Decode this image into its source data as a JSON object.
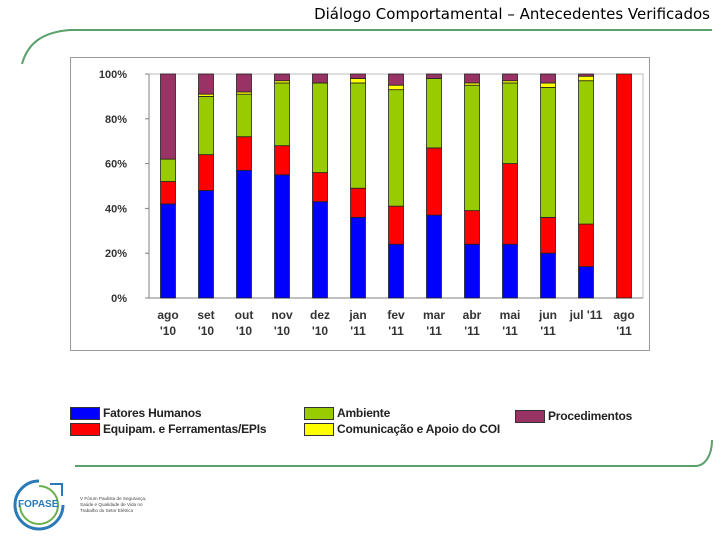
{
  "slide": {
    "title": "Diálogo Comportamental – Antecedentes Verificados",
    "logo_text": "FOPASE",
    "tagline_lines": [
      "V Fórum Paulista de Segurança,",
      "Saúde e Qualidade de Vida no",
      "Trabalho do Setor Elétrico"
    ]
  },
  "colors": {
    "fatores": "#0000ff",
    "equipam": "#ff0000",
    "ambiente": "#99cc00",
    "comunicacao": "#ffff00",
    "procedimentos": "#993366",
    "accent": "#5aa06a"
  },
  "chart_data": {
    "type": "bar",
    "stacked": true,
    "percent": true,
    "title": "",
    "xlabel": "",
    "ylabel": "",
    "ylim": [
      0,
      100
    ],
    "y_ticks": [
      "0%",
      "20%",
      "40%",
      "60%",
      "80%",
      "100%"
    ],
    "categories": [
      [
        "ago",
        "'10"
      ],
      [
        "set",
        "'10"
      ],
      [
        "out",
        "'10"
      ],
      [
        "nov",
        "'10"
      ],
      [
        "dez",
        "'10"
      ],
      [
        "jan",
        "'11"
      ],
      [
        "fev",
        "'11"
      ],
      [
        "mar",
        "'11"
      ],
      [
        "abr",
        "'11"
      ],
      [
        "mai",
        "'11"
      ],
      [
        "jun",
        "'11"
      ],
      [
        "jul '11",
        ""
      ],
      [
        "ago",
        "'11"
      ]
    ],
    "series": [
      {
        "name": "Fatores Humanos",
        "color": "#0000ff",
        "values": [
          42,
          48,
          57,
          55,
          43,
          36,
          24,
          37,
          24,
          24,
          20,
          14,
          0
        ]
      },
      {
        "name": "Equipam. e Ferramentas/EPIs",
        "color": "#ff0000",
        "values": [
          10,
          16,
          15,
          13,
          13,
          13,
          17,
          30,
          15,
          36,
          16,
          19,
          100
        ]
      },
      {
        "name": "Ambiente",
        "color": "#99cc00",
        "values": [
          10,
          26,
          19,
          28,
          40,
          47,
          52,
          31,
          56,
          36,
          58,
          64,
          0
        ]
      },
      {
        "name": "Comunicação e Apoio do COI",
        "color": "#ffff00",
        "values": [
          0,
          1,
          1,
          1,
          0,
          2,
          2,
          0,
          1,
          1,
          2,
          2,
          0
        ]
      },
      {
        "name": "Procedimentos",
        "color": "#993366",
        "values": [
          38,
          9,
          8,
          3,
          4,
          2,
          5,
          2,
          4,
          3,
          4,
          1,
          0
        ]
      }
    ],
    "legend": [
      {
        "label": "Fatores Humanos",
        "color": "#0000ff"
      },
      {
        "label": "Equipam. e Ferramentas/EPIs",
        "color": "#ff0000"
      },
      {
        "label": "Ambiente",
        "color": "#99cc00"
      },
      {
        "label": "Comunicação e Apoio do COI",
        "color": "#ffff00"
      },
      {
        "label": "Procedimentos",
        "color": "#993366"
      }
    ],
    "legend_position": "bottom"
  }
}
